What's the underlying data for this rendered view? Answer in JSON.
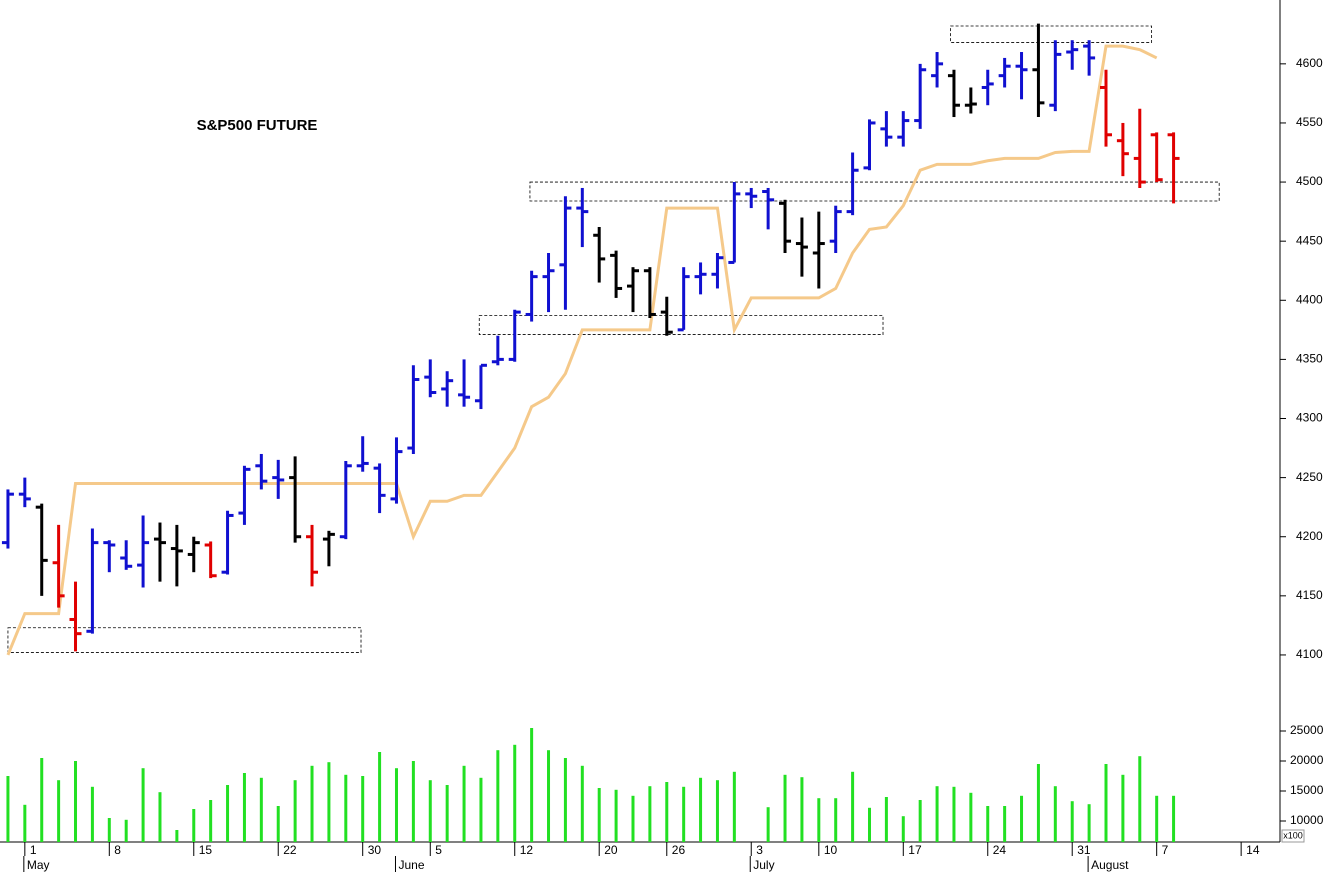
{
  "chart_data": {
    "type": "ohlc",
    "title": "S&P500 FUTURE",
    "xlim": [
      -0.47,
      75.3
    ],
    "xticks": [
      {
        "value": 1,
        "label": "1"
      },
      {
        "value": 6,
        "label": "8"
      },
      {
        "value": 11,
        "label": "15"
      },
      {
        "value": 16,
        "label": "22"
      },
      {
        "value": 21,
        "label": "30"
      },
      {
        "value": 25,
        "label": "5"
      },
      {
        "value": 30,
        "label": "12"
      },
      {
        "value": 35,
        "label": "20"
      },
      {
        "value": 39,
        "label": "26"
      },
      {
        "value": 44,
        "label": "3"
      },
      {
        "value": 48,
        "label": "10"
      },
      {
        "value": 53,
        "label": "17"
      },
      {
        "value": 58,
        "label": "24"
      },
      {
        "value": 63,
        "label": "31"
      },
      {
        "value": 68,
        "label": "7"
      },
      {
        "value": 73,
        "label": "14"
      }
    ],
    "months": [
      {
        "value": 1,
        "label": "May"
      },
      {
        "value": 23,
        "label": "June"
      },
      {
        "value": 44,
        "label": "July"
      },
      {
        "value": 64,
        "label": "August"
      }
    ],
    "ylim": [
      4075,
      4654
    ],
    "yticks": [
      4100,
      4150,
      4200,
      4250,
      4300,
      4350,
      4400,
      4450,
      4500,
      4550,
      4600
    ],
    "ohlc": {
      "open": [
        4195,
        4236,
        4225,
        4178,
        4130,
        4120,
        4195,
        4182,
        4176,
        4198,
        4190,
        4185,
        4193,
        4170,
        4220,
        4260,
        4250,
        4250,
        4200,
        4198,
        4200,
        4260,
        4258,
        4232,
        4275,
        4335,
        4325,
        4320,
        4315,
        4348,
        4350,
        4388,
        4420,
        4430,
        4478,
        4455,
        4438,
        4412,
        4425,
        4390,
        4375,
        4420,
        4422,
        4432,
        4490,
        4492,
        4482,
        4448,
        4440,
        4450,
        4475,
        4512,
        4545,
        4538,
        4552,
        4590,
        4590,
        4565,
        4580,
        4590,
        4598,
        4595,
        4565,
        4610,
        4615,
        4580,
        4535,
        4520,
        4540,
        4540
      ],
      "high": [
        4240,
        4250,
        4228,
        4210,
        4162,
        4207,
        4197,
        4197,
        4218,
        4212,
        4210,
        4200,
        4196,
        4222,
        4260,
        4270,
        4265,
        4268,
        4210,
        4205,
        4264,
        4285,
        4262,
        4284,
        4345,
        4350,
        4340,
        4350,
        4345,
        4370,
        4392,
        4425,
        4440,
        4488,
        4495,
        4462,
        4442,
        4428,
        4428,
        4403,
        4428,
        4432,
        4440,
        4500,
        4495,
        4495,
        4485,
        4470,
        4475,
        4480,
        4525,
        4553,
        4560,
        4560,
        4600,
        4610,
        4595,
        4580,
        4595,
        4605,
        4610,
        4634,
        4620,
        4620,
        4620,
        4595,
        4550,
        4562,
        4542,
        4542
      ],
      "low": [
        4190,
        4225,
        4150,
        4140,
        4103,
        4118,
        4170,
        4172,
        4157,
        4162,
        4158,
        4170,
        4165,
        4168,
        4210,
        4240,
        4232,
        4195,
        4158,
        4175,
        4198,
        4255,
        4220,
        4228,
        4270,
        4318,
        4310,
        4310,
        4308,
        4345,
        4348,
        4382,
        4390,
        4392,
        4445,
        4415,
        4402,
        4390,
        4385,
        4370,
        4375,
        4405,
        4410,
        4432,
        4478,
        4460,
        4440,
        4420,
        4410,
        4440,
        4472,
        4510,
        4530,
        4530,
        4545,
        4580,
        4555,
        4558,
        4565,
        4580,
        4570,
        4555,
        4560,
        4595,
        4590,
        4530,
        4505,
        4495,
        4500,
        4482
      ],
      "close": [
        4236,
        4232,
        4180,
        4150,
        4118,
        4195,
        4193,
        4175,
        4195,
        4195,
        4188,
        4195,
        4167,
        4218,
        4257,
        4247,
        4248,
        4200,
        4170,
        4202,
        4260,
        4262,
        4235,
        4272,
        4333,
        4322,
        4332,
        4318,
        4345,
        4350,
        4390,
        4420,
        4425,
        4478,
        4475,
        4435,
        4410,
        4425,
        4388,
        4373,
        4420,
        4422,
        4436,
        4490,
        4488,
        4485,
        4450,
        4445,
        4448,
        4475,
        4510,
        4550,
        4538,
        4552,
        4595,
        4600,
        4565,
        4566,
        4583,
        4598,
        4595,
        4567,
        4608,
        4612,
        4605,
        4540,
        4524,
        4500,
        4502,
        4520
      ],
      "colors": [
        "#1010d0",
        "#1010d0",
        "#000000",
        "#e00000",
        "#e00000",
        "#1010d0",
        "#1010d0",
        "#1010d0",
        "#1010d0",
        "#000000",
        "#000000",
        "#000000",
        "#e00000",
        "#1010d0",
        "#1010d0",
        "#1010d0",
        "#1010d0",
        "#000000",
        "#e00000",
        "#000000",
        "#1010d0",
        "#1010d0",
        "#1010d0",
        "#1010d0",
        "#1010d0",
        "#1010d0",
        "#1010d0",
        "#1010d0",
        "#1010d0",
        "#1010d0",
        "#1010d0",
        "#1010d0",
        "#1010d0",
        "#1010d0",
        "#1010d0",
        "#000000",
        "#000000",
        "#000000",
        "#000000",
        "#000000",
        "#1010d0",
        "#1010d0",
        "#1010d0",
        "#1010d0",
        "#1010d0",
        "#1010d0",
        "#000000",
        "#000000",
        "#000000",
        "#1010d0",
        "#1010d0",
        "#1010d0",
        "#1010d0",
        "#1010d0",
        "#1010d0",
        "#1010d0",
        "#000000",
        "#000000",
        "#1010d0",
        "#1010d0",
        "#1010d0",
        "#000000",
        "#1010d0",
        "#1010d0",
        "#1010d0",
        "#e00000",
        "#e00000",
        "#e00000",
        "#e00000",
        "#e00000"
      ]
    },
    "line": {
      "color": "#f5c98a",
      "values": [
        4100,
        4135,
        4135,
        4135,
        4245,
        4245,
        4245,
        4245,
        4245,
        4245,
        4245,
        4245,
        4245,
        4245,
        4245,
        4245,
        4245,
        4245,
        4245,
        4245,
        4245,
        4245,
        4245,
        4245,
        4200,
        4230,
        4230,
        4235,
        4235,
        4255,
        4275,
        4310,
        4318,
        4338,
        4375,
        4375,
        4375,
        4375,
        4375,
        4478,
        4478,
        4478,
        4478,
        4375,
        4402,
        4402,
        4402,
        4402,
        4402,
        4410,
        4440,
        4460,
        4462,
        4480,
        4510,
        4515,
        4515,
        4515,
        4518,
        4520,
        4520,
        4520,
        4525,
        4526,
        4526,
        4615,
        4615,
        4612,
        4605,
        null
      ]
    },
    "zones": [
      {
        "x": [
          0,
          20.9
        ],
        "y": [
          4102,
          4123
        ]
      },
      {
        "x": [
          27.9,
          51.8
        ],
        "y": [
          4371,
          4387
        ]
      },
      {
        "x": [
          30.9,
          71.7
        ],
        "y": [
          4484,
          4500
        ]
      },
      {
        "x": [
          55.8,
          67.7
        ],
        "y": [
          4618,
          4632
        ]
      }
    ],
    "volume": {
      "color": "#22e022",
      "unit": "x100",
      "ylim": [
        6500,
        27000
      ],
      "yticks": [
        10000,
        15000,
        20000,
        25000
      ],
      "values": [
        17500,
        12700,
        20500,
        16800,
        20000,
        15700,
        10500,
        10200,
        18800,
        14800,
        8500,
        12000,
        13500,
        16000,
        18000,
        17200,
        12500,
        16800,
        19200,
        19800,
        17700,
        17500,
        21500,
        18800,
        20000,
        16800,
        16000,
        19200,
        17200,
        21800,
        22700,
        25500,
        21800,
        20500,
        19200,
        15500,
        15200,
        14200,
        15800,
        16500,
        15700,
        17200,
        16800,
        18200,
        null,
        12300,
        17700,
        17300,
        13800,
        13800,
        18200,
        12200,
        14000,
        10800,
        13500,
        15800,
        15700,
        14700,
        12500,
        12500,
        14200,
        19500,
        15800,
        13300,
        12800,
        19500,
        17700,
        20800,
        14200,
        14200
      ]
    }
  }
}
